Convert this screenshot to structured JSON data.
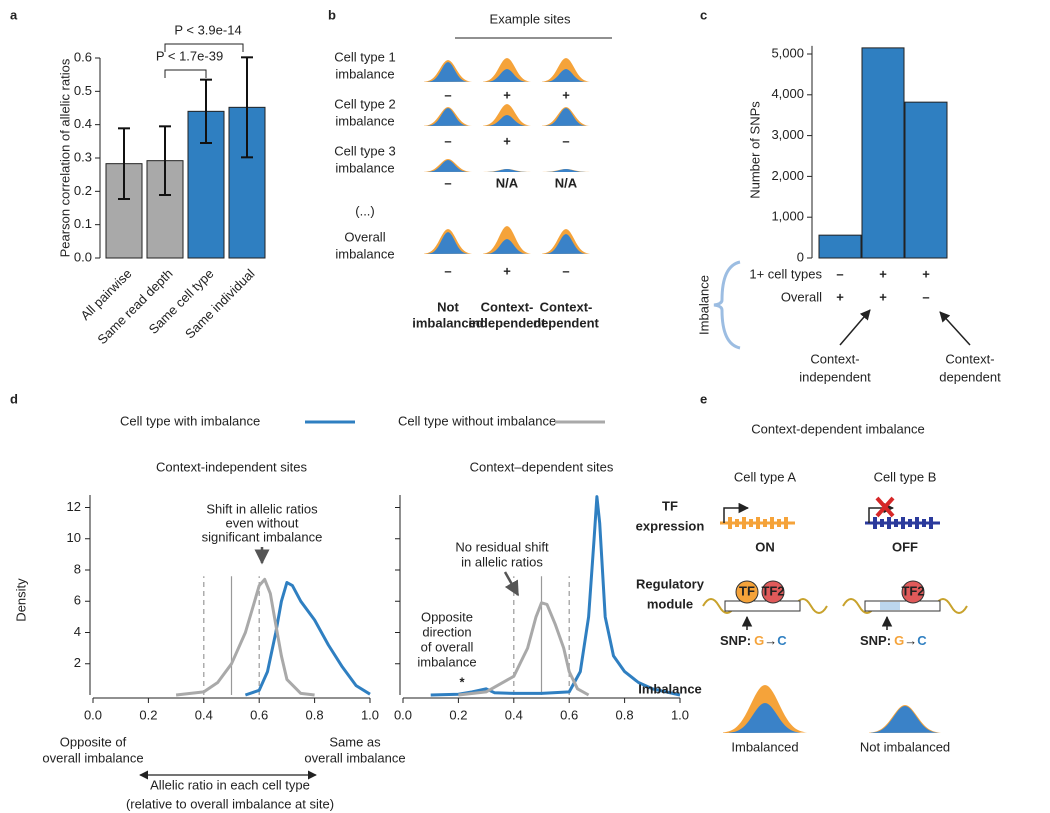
{
  "panel_labels": [
    "a",
    "b",
    "c",
    "d",
    "e"
  ],
  "chart_data": [
    {
      "type": "bar",
      "ylabel": "Pearson correlation of allelic ratios",
      "categories": [
        "All pairwise",
        "Same read depth",
        "Same cell type",
        "Same individual"
      ],
      "values": [
        0.283,
        0.292,
        0.44,
        0.452
      ],
      "errors": [
        0.106,
        0.103,
        0.095,
        0.15
      ],
      "colors": [
        "#a9a9a9",
        "#a9a9a9",
        "#2f7fc1",
        "#2f7fc1"
      ],
      "ylim": [
        0,
        0.6
      ],
      "yticks": [
        {
          "value": 0,
          "label": "0.0"
        },
        0.1,
        0.2,
        0.3,
        0.4,
        0.5,
        0.6
      ],
      "annotations": [
        "P < 1.7e-39",
        "P < 3.9e-14"
      ]
    },
    {
      "type": "bar",
      "ylabel": "Number of SNPs",
      "categories": [
        null,
        null,
        null
      ],
      "values": [
        560,
        5150,
        3820
      ],
      "color": "#2f7fc1",
      "ylim": [
        0,
        5200
      ],
      "yticks": [
        0,
        {
          "value": 1000,
          "label": "1,000"
        },
        {
          "value": 2000,
          "label": "2,000"
        },
        {
          "value": 3000,
          "label": "3,000"
        },
        {
          "value": 4000,
          "label": "4,000"
        },
        {
          "value": 5000,
          "label": "5,000"
        }
      ],
      "table_title": "Imbalance",
      "rows": [
        {
          "label": "1+ cell types",
          "signs": [
            "–",
            "+",
            "+"
          ]
        },
        {
          "label": "Overall",
          "signs": [
            "+",
            "+",
            "–"
          ]
        }
      ],
      "annotations": [
        [
          "Context-",
          "independent"
        ],
        [
          "Context-",
          "dependent"
        ]
      ]
    },
    {
      "type": "line",
      "title": "Context-independent sites",
      "ylabel": "Density",
      "xlim": [
        0,
        1
      ],
      "ylim": [
        0,
        12.8
      ],
      "xticks": [
        {
          "value": 0,
          "label": "0.0"
        },
        0.2,
        0.4,
        0.6,
        0.8,
        {
          "value": 1,
          "label": "1.0"
        }
      ],
      "yticks": [
        2,
        4,
        6,
        8,
        10,
        12
      ],
      "reference_lines": [
        {
          "value": 0.4,
          "style": "dashed"
        },
        {
          "value": 0.5,
          "style": "solid"
        },
        {
          "value": 0.6,
          "style": "dashed"
        }
      ],
      "series": [
        {
          "name": "Cell type with imbalance",
          "color": "#2f7fc1",
          "x": [
            0.55,
            0.6,
            0.63,
            0.66,
            0.68,
            0.7,
            0.72,
            0.75,
            0.8,
            0.85,
            0.9,
            0.95,
            1.0
          ],
          "values": [
            0,
            0.3,
            1.5,
            4,
            6,
            7.2,
            7.0,
            6.0,
            4.8,
            3.2,
            1.8,
            0.6,
            0.05
          ]
        },
        {
          "name": "Cell type without imbalance",
          "color": "#a9a9a9",
          "x": [
            0.3,
            0.4,
            0.45,
            0.5,
            0.55,
            0.58,
            0.6,
            0.62,
            0.64,
            0.66,
            0.68,
            0.7,
            0.75,
            0.8
          ],
          "values": [
            0,
            0.2,
            0.8,
            2.0,
            4.0,
            5.8,
            7.0,
            7.4,
            6.5,
            4.5,
            2.5,
            1.0,
            0.1,
            0
          ]
        }
      ],
      "annotations": [
        [
          "Shift in allelic ratios",
          "even without",
          "significant imbalance"
        ]
      ],
      "xlabel_left": [
        "Opposite of",
        "overall imbalance"
      ],
      "xlabel_right": [
        "Same as",
        "overall imbalance"
      ],
      "xlabel": [
        "Allelic ratio in each cell type",
        "(relative to overall imbalance at site)"
      ]
    },
    {
      "type": "line",
      "title": "Context–dependent sites",
      "xlim": [
        0,
        1
      ],
      "ylim": [
        0,
        12.8
      ],
      "xticks": [
        {
          "value": 0,
          "label": "0.0"
        },
        0.2,
        0.4,
        0.6,
        0.8,
        {
          "value": 1,
          "label": "1.0"
        }
      ],
      "yticks": [
        2,
        4,
        6,
        8,
        10,
        12
      ],
      "reference_lines": [
        {
          "value": 0.4,
          "style": "dashed"
        },
        {
          "value": 0.5,
          "style": "solid"
        },
        {
          "value": 0.6,
          "style": "dashed"
        }
      ],
      "series": [
        {
          "color": "#2f7fc1",
          "x": [
            0.1,
            0.2,
            0.25,
            0.3,
            0.33,
            0.4,
            0.5,
            0.6,
            0.64,
            0.67,
            0.69,
            0.7,
            0.71,
            0.73,
            0.76,
            0.8,
            0.85,
            0.9,
            0.95,
            1.0
          ],
          "values": [
            0,
            0.05,
            0.2,
            0.4,
            0.15,
            0.1,
            0.1,
            0.2,
            1.5,
            5,
            10,
            12.7,
            11,
            5,
            2.5,
            1.5,
            0.8,
            0.4,
            0.2,
            0
          ]
        },
        {
          "color": "#a9a9a9",
          "x": [
            0.2,
            0.3,
            0.4,
            0.45,
            0.48,
            0.5,
            0.52,
            0.55,
            0.58,
            0.6,
            0.63,
            0.67
          ],
          "values": [
            0,
            0.2,
            1.2,
            3.0,
            5.0,
            5.9,
            5.8,
            4.5,
            3.0,
            1.5,
            0.4,
            0
          ]
        }
      ],
      "annotations": [
        [
          "No residual shift",
          "in allelic ratios"
        ],
        [
          "Opposite",
          "direction",
          "of overall",
          "imbalance"
        ],
        [
          "*"
        ]
      ]
    }
  ],
  "example_sites": {
    "title": "Example sites",
    "rows": [
      {
        "label": [
          "Cell type 1",
          "imbalance"
        ],
        "signs": [
          "–",
          "+",
          "+"
        ]
      },
      {
        "label": [
          "Cell type 2",
          "imbalance"
        ],
        "signs": [
          "–",
          "+",
          "–"
        ]
      },
      {
        "label": [
          "Cell type 3",
          "imbalance"
        ],
        "signs": [
          "–",
          "N/A",
          "N/A"
        ]
      },
      {
        "label": [
          "Overall",
          "imbalance"
        ],
        "signs": [
          "–",
          "+",
          "–"
        ]
      }
    ],
    "ellipsis": "(...)",
    "columns": [
      [
        "Not",
        "imbalanced"
      ],
      [
        "Context-",
        "independent"
      ],
      [
        "Context-",
        "dependent"
      ]
    ]
  },
  "context_dependent": {
    "title": "Context-dependent imbalance",
    "columns": [
      "Cell type A",
      "Cell type B"
    ],
    "rows": [
      [
        "TF",
        "expression"
      ],
      [
        "Regulatory",
        "module"
      ],
      [
        "Imbalance"
      ]
    ],
    "expression": [
      "ON",
      "OFF"
    ],
    "factors": [
      "TF",
      "TF2",
      "TF2"
    ],
    "snp": [
      [
        "SNP:",
        "G",
        "→",
        "C"
      ],
      [
        "SNP:",
        "G",
        "→",
        "C"
      ]
    ],
    "outcomes": [
      "Imbalanced",
      "Not imbalanced"
    ]
  }
}
